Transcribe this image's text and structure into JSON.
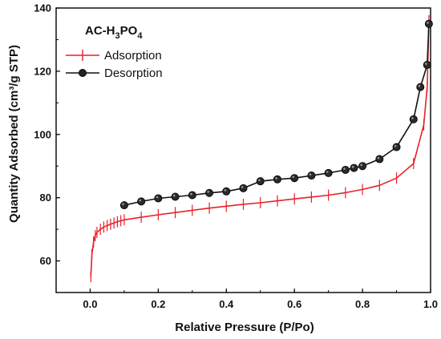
{
  "chart_data": {
    "type": "line",
    "title": "",
    "panel_label": {
      "text": "AC-H",
      "sub1": "3",
      "mid": "PO",
      "sub2": "4"
    },
    "xlabel": "Relative Pressure (P/Po)",
    "ylabel": "Quantity Adsorbed (cm³/g STP)",
    "xlim": [
      -0.1,
      1.0
    ],
    "ylim": [
      50,
      140
    ],
    "xticks": [
      0.0,
      0.2,
      0.4,
      0.6,
      0.8,
      1.0
    ],
    "xtick_labels": [
      "0.0",
      "0.2",
      "0.4",
      "0.6",
      "0.8",
      "1.0"
    ],
    "yticks": [
      60,
      80,
      100,
      120,
      140
    ],
    "ytick_labels": [
      "60",
      "80",
      "100",
      "120",
      "140"
    ],
    "grid": false,
    "legend_position": "top-left",
    "series": [
      {
        "name": "Adsorption",
        "color": "#e8202a",
        "marker": "vertical-bar",
        "x": [
          0.002,
          0.005,
          0.01,
          0.015,
          0.02,
          0.03,
          0.04,
          0.05,
          0.06,
          0.07,
          0.08,
          0.09,
          0.1,
          0.15,
          0.2,
          0.25,
          0.3,
          0.35,
          0.4,
          0.45,
          0.5,
          0.55,
          0.6,
          0.65,
          0.7,
          0.75,
          0.8,
          0.85,
          0.9,
          0.95,
          0.98,
          0.99,
          0.995
        ],
        "y": [
          55,
          62,
          66,
          68,
          69,
          70,
          70.7,
          71.2,
          71.6,
          72,
          72.4,
          72.7,
          73,
          73.8,
          74.6,
          75.3,
          76,
          76.7,
          77.3,
          77.9,
          78.4,
          79,
          79.6,
          80.2,
          80.8,
          81.6,
          82.6,
          83.9,
          86.2,
          90.8,
          103,
          115,
          136
        ]
      },
      {
        "name": "Desorption",
        "color": "#111111",
        "marker": "sphere",
        "x": [
          0.995,
          0.99,
          0.97,
          0.95,
          0.9,
          0.85,
          0.8,
          0.775,
          0.75,
          0.7,
          0.65,
          0.6,
          0.55,
          0.5,
          0.45,
          0.4,
          0.35,
          0.3,
          0.25,
          0.2,
          0.15,
          0.1
        ],
        "y": [
          135,
          122,
          115,
          104.8,
          96,
          92.2,
          90,
          89.4,
          88.8,
          87.8,
          87,
          86.2,
          85.8,
          85.2,
          83,
          82,
          81.5,
          80.8,
          80.3,
          79.8,
          78.8,
          77.6
        ]
      }
    ]
  }
}
